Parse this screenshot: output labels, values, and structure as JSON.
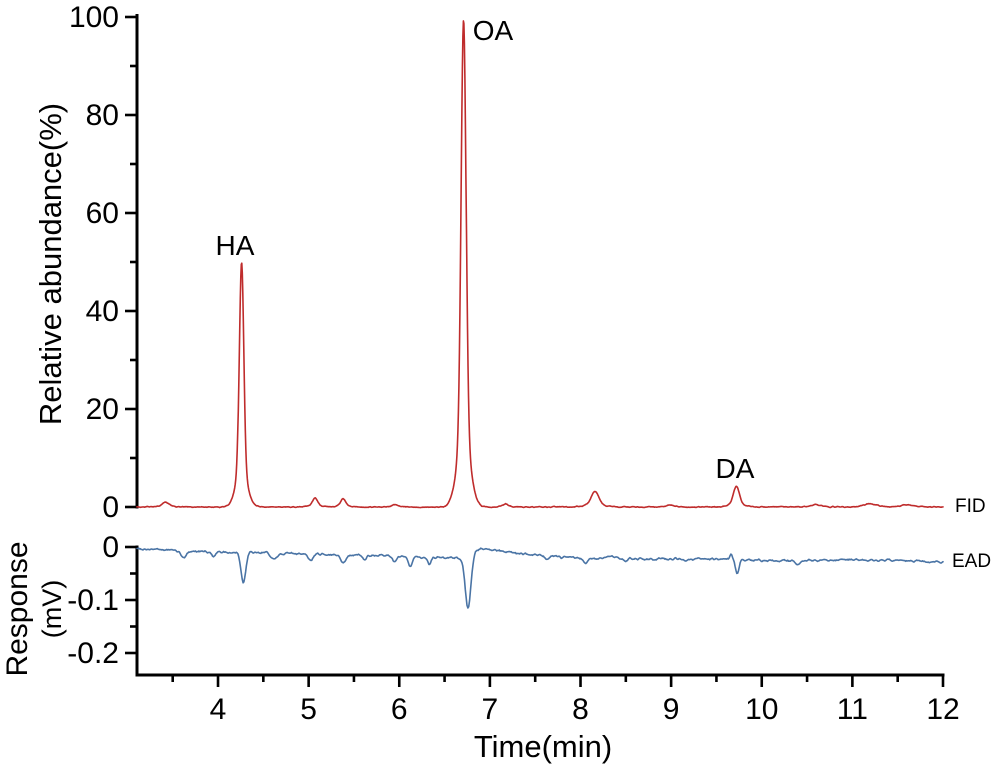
{
  "labels": {
    "top_y_title": "Relative abundance(%)",
    "bottom_y_title_line1": "Response",
    "bottom_y_title_line2": "(mV)",
    "x_title": "Time(min)"
  },
  "x_axis": {
    "label": "Time(min)",
    "range": [
      3.106,
      12
    ],
    "ticks": [
      4,
      5,
      6,
      7,
      8,
      9,
      10,
      11,
      12
    ],
    "tick_labels": [
      "4",
      "5",
      "6",
      "7",
      "8",
      "9",
      "10",
      "11",
      "12"
    ],
    "minor_ticks": [
      3.5,
      4.5,
      5.5,
      6.5,
      7.5,
      8.5,
      9.5,
      10.5,
      11.5
    ]
  },
  "chart_data": [
    {
      "type": "line",
      "name": "FID chromatogram (gas chromatography flame ionization detector trace)",
      "ylabel": "Relative abundance(%)",
      "x_range": [
        3.106,
        12
      ],
      "y_range": [
        0,
        100
      ],
      "y_ticks": [
        0,
        20,
        40,
        60,
        80,
        100
      ],
      "y_tick_labels": [
        "0",
        "20",
        "40",
        "60",
        "80",
        "100"
      ],
      "y_minor_ticks": [
        10,
        30,
        50,
        70,
        90
      ],
      "grid": false,
      "series": [
        {
          "name": "FID",
          "color": "#bf2c2c",
          "baseline_pct": 0,
          "noise_pct": 0.18,
          "peaks": [
            {
              "rt": 3.42,
              "pct": 1.0,
              "sigma": 0.035
            },
            {
              "rt": 4.26,
              "pct": 50,
              "sigma": 0.024
            },
            {
              "rt": 5.07,
              "pct": 1.8,
              "sigma": 0.03
            },
            {
              "rt": 5.38,
              "pct": 1.7,
              "sigma": 0.026
            },
            {
              "rt": 5.95,
              "pct": 0.5,
              "sigma": 0.03
            },
            {
              "rt": 6.71,
              "pct": 99.5,
              "sigma": 0.027
            },
            {
              "rt": 7.17,
              "pct": 0.6,
              "sigma": 0.035
            },
            {
              "rt": 8.16,
              "pct": 3.2,
              "sigma": 0.04
            },
            {
              "rt": 9.0,
              "pct": 0.4,
              "sigma": 0.04
            },
            {
              "rt": 9.72,
              "pct": 4.2,
              "sigma": 0.032
            },
            {
              "rt": 10.6,
              "pct": 0.5,
              "sigma": 0.05
            },
            {
              "rt": 11.2,
              "pct": 0.7,
              "sigma": 0.06
            },
            {
              "rt": 11.6,
              "pct": 0.5,
              "sigma": 0.05
            }
          ]
        }
      ],
      "annotations": [
        {
          "text": "HA",
          "rt": 4.26,
          "peak_pct": 50
        },
        {
          "text": "OA",
          "rt": 6.71,
          "peak_pct": 99.5
        },
        {
          "text": "DA",
          "rt": 9.72,
          "peak_pct": 4.2
        }
      ]
    },
    {
      "type": "line",
      "name": "EAD response (electroantennographic detector trace)",
      "ylabel": "Response (mV)",
      "x_range": [
        3.106,
        12
      ],
      "y_range": [
        -0.2415,
        0
      ],
      "y_ticks": [
        0,
        -0.1,
        -0.2
      ],
      "y_tick_labels": [
        "0",
        "-0.1",
        "-0.2"
      ],
      "y_minor_ticks": [
        -0.05,
        -0.15
      ],
      "grid": false,
      "series": [
        {
          "name": "EAD",
          "color": "#4a74a5",
          "noise_mV": 0.0032,
          "drift_mV": [
            [
              3.106,
              -0.003
            ],
            [
              3.5,
              -0.006
            ],
            [
              4.0,
              -0.01
            ],
            [
              4.6,
              -0.011
            ],
            [
              5.2,
              -0.014
            ],
            [
              5.9,
              -0.017
            ],
            [
              6.55,
              -0.021
            ],
            [
              6.72,
              -0.021
            ],
            [
              6.95,
              -0.003
            ],
            [
              7.15,
              -0.008
            ],
            [
              7.6,
              -0.017
            ],
            [
              8.1,
              -0.021
            ],
            [
              8.8,
              -0.022
            ],
            [
              9.5,
              -0.023
            ],
            [
              10.2,
              -0.026
            ],
            [
              11.0,
              -0.024
            ],
            [
              11.6,
              -0.026
            ],
            [
              12.0,
              -0.029
            ]
          ],
          "deflections": [
            {
              "rt": 3.62,
              "depth_mV": 0.014,
              "sigma": 0.03
            },
            {
              "rt": 3.95,
              "depth_mV": 0.007,
              "sigma": 0.025
            },
            {
              "rt": 4.28,
              "depth_mV": 0.058,
              "sigma": 0.026
            },
            {
              "rt": 4.62,
              "depth_mV": 0.011,
              "sigma": 0.035
            },
            {
              "rt": 5.02,
              "depth_mV": 0.012,
              "sigma": 0.03
            },
            {
              "rt": 5.38,
              "depth_mV": 0.014,
              "sigma": 0.028
            },
            {
              "rt": 5.62,
              "depth_mV": 0.008,
              "sigma": 0.02
            },
            {
              "rt": 5.95,
              "depth_mV": 0.01,
              "sigma": 0.02
            },
            {
              "rt": 6.12,
              "depth_mV": 0.02,
              "sigma": 0.022
            },
            {
              "rt": 6.33,
              "depth_mV": 0.013,
              "sigma": 0.018
            },
            {
              "rt": 6.76,
              "depth_mV": 0.1,
              "sigma": 0.03
            },
            {
              "rt": 7.63,
              "depth_mV": 0.008,
              "sigma": 0.02
            },
            {
              "rt": 8.05,
              "depth_mV": 0.009,
              "sigma": 0.025
            },
            {
              "rt": 8.5,
              "depth_mV": 0.007,
              "sigma": 0.02
            },
            {
              "rt": 9.15,
              "depth_mV": 0.006,
              "sigma": 0.02
            },
            {
              "rt": 9.73,
              "depth_mV": 0.028,
              "sigma": 0.02
            },
            {
              "rt": 10.4,
              "depth_mV": 0.007,
              "sigma": 0.025
            }
          ],
          "bumps": [
            {
              "rt": 6.88,
              "height_mV": 0.004,
              "sigma": 0.05
            },
            {
              "rt": 8.35,
              "height_mV": 0.003,
              "sigma": 0.05
            },
            {
              "rt": 9.66,
              "height_mV": 0.012,
              "sigma": 0.013
            }
          ]
        }
      ]
    }
  ]
}
